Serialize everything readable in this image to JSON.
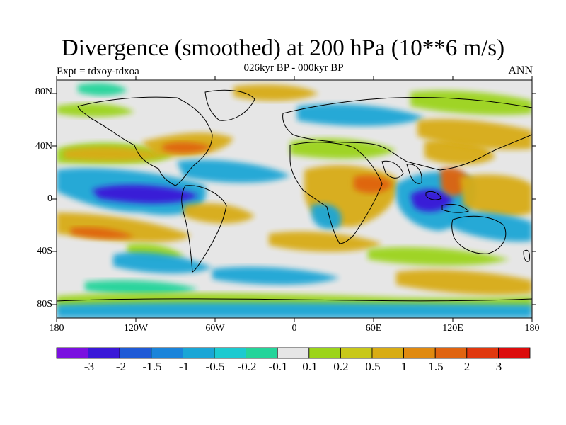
{
  "title": "Divergence (smoothed) at 200 hPa (10**6 m/s)",
  "subtitle": "026kyr BP - 000kyr BP",
  "left_label": "Expt = tdxoy-tdxoa",
  "right_label": "ANN",
  "y_ticks": [
    "80N",
    "40N",
    "0",
    "40S",
    "80S"
  ],
  "x_ticks": [
    "180",
    "120W",
    "60W",
    "0",
    "60E",
    "120E",
    "180"
  ],
  "colorbar": {
    "labels": [
      "-3",
      "-2",
      "-1.5",
      "-1",
      "-0.5",
      "-0.2",
      "-0.1",
      "0.1",
      "0.2",
      "0.5",
      "1",
      "1.5",
      "2",
      "3"
    ],
    "colors": [
      "#7a10e0",
      "#3a18d8",
      "#1f5ad6",
      "#1a84da",
      "#1aa6d6",
      "#1ccad0",
      "#24d49a",
      "#e6e6e6",
      "#9cd41a",
      "#c8c81a",
      "#d8ac14",
      "#e08a10",
      "#e06410",
      "#e0380e",
      "#dc0c0c"
    ]
  },
  "map_colors": {
    "ocean": "#e6e6e6",
    "land_outline": "#000000",
    "strong_negative": "#3a18d8",
    "negative": "#1aa6d6",
    "weak_negative": "#24d49a",
    "weak_positive": "#9cd41a",
    "positive": "#d8ac14",
    "strong_positive": "#e06410"
  }
}
